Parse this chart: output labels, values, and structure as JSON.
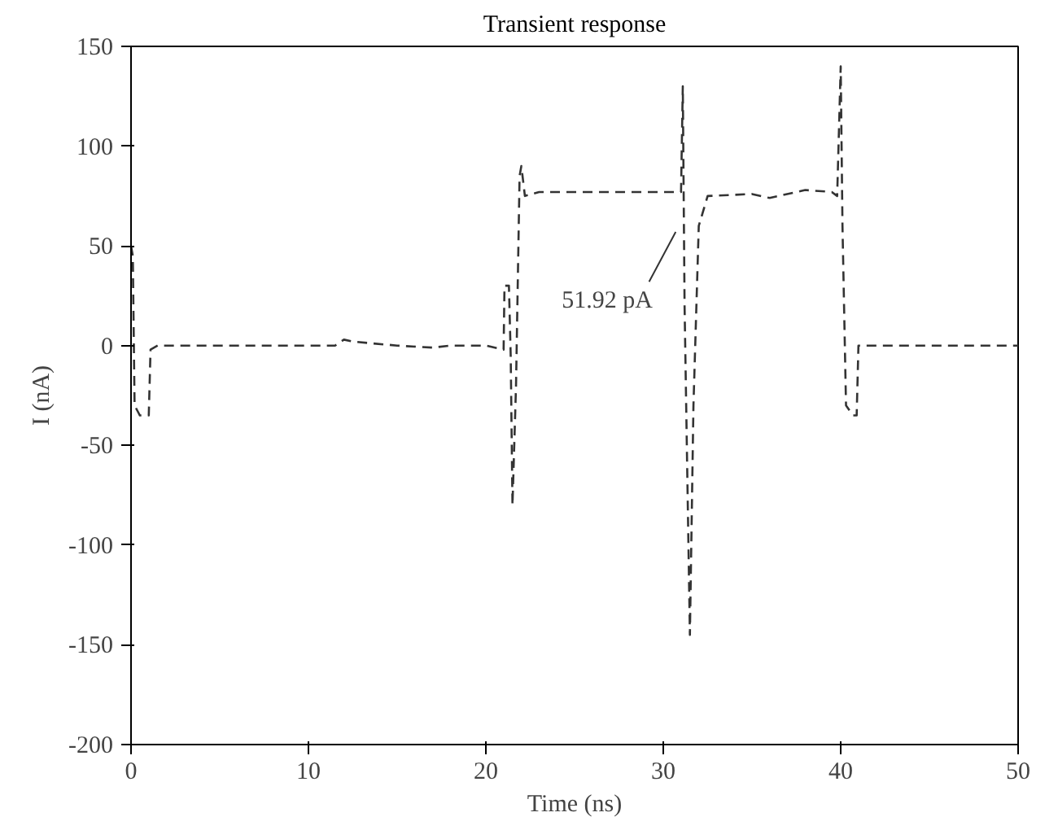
{
  "chart_data": {
    "type": "line",
    "title": "Transient response",
    "xlabel": "Time (ns)",
    "ylabel": "I (nA)",
    "xlim": [
      0,
      50
    ],
    "ylim": [
      -200,
      150
    ],
    "xticks": [
      0,
      10,
      20,
      30,
      40,
      50
    ],
    "yticks": [
      -200,
      -150,
      -100,
      -50,
      0,
      50,
      100,
      150
    ],
    "grid": false,
    "marker": "none",
    "line_style": "dashed",
    "annotations": [
      {
        "text": "51.92 pA",
        "x": 30.7,
        "y": 57
      }
    ],
    "series": [
      {
        "color": "#333333",
        "x": [
          0,
          0.1,
          0.2,
          0.5,
          1,
          1.1,
          1.5,
          11,
          11.5,
          12,
          12.5,
          15,
          17,
          18,
          20,
          21,
          21.05,
          21.3,
          21.4,
          21.5,
          21.7,
          21.9,
          22,
          22.2,
          23,
          31,
          31.1,
          31.2,
          31.5,
          31.7,
          32,
          32.5,
          35,
          36,
          38,
          39.5,
          39.8,
          40,
          40.1,
          40.3,
          40.7,
          40.9,
          41,
          42,
          50
        ],
        "values": [
          50,
          45,
          -30,
          -35,
          -35,
          -2,
          0,
          0,
          0,
          3,
          2,
          0,
          -1,
          0,
          0,
          -2,
          30,
          30,
          -5,
          -80,
          -20,
          85,
          90,
          75,
          77,
          77,
          130,
          20,
          -145,
          -30,
          60,
          75,
          76,
          74,
          78,
          77,
          75,
          140,
          60,
          -30,
          -35,
          -35,
          0,
          0,
          0
        ]
      }
    ]
  }
}
